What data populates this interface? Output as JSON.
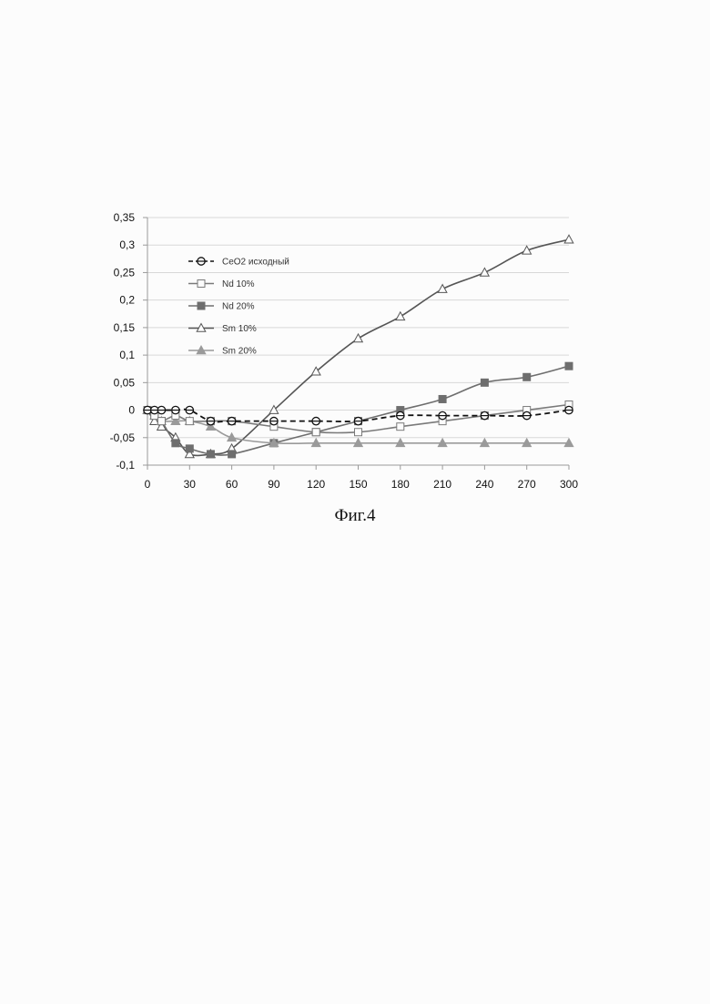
{
  "caption": "Фиг.4",
  "chart_data": {
    "type": "line",
    "title": "",
    "xlabel": "",
    "ylabel": "",
    "x": [
      0,
      5,
      10,
      20,
      30,
      45,
      60,
      90,
      120,
      150,
      180,
      210,
      240,
      270,
      300
    ],
    "x_ticks": [
      0,
      30,
      60,
      90,
      120,
      150,
      180,
      210,
      240,
      270,
      300
    ],
    "x_tick_labels": [
      "0",
      "30",
      "60",
      "90",
      "120",
      "150",
      "180",
      "210",
      "240",
      "270",
      "300"
    ],
    "xlim": [
      0,
      300
    ],
    "ylim": [
      -0.1,
      0.35
    ],
    "y_ticks": [
      -0.1,
      -0.05,
      0,
      0.05,
      0.1,
      0.15,
      0.2,
      0.25,
      0.3,
      0.35
    ],
    "y_tick_labels": [
      "-0,1",
      "-0,05",
      "0",
      "0,05",
      "0,1",
      "0,15",
      "0,2",
      "0,25",
      "0,3",
      "0,35"
    ],
    "grid": "horizontal",
    "legend_position": "top-left",
    "series": [
      {
        "name": "CeO2 исходный",
        "color": "#111111",
        "dash": true,
        "marker": "circle-open",
        "points": [
          [
            0,
            0
          ],
          [
            5,
            0
          ],
          [
            10,
            0
          ],
          [
            20,
            0
          ],
          [
            30,
            0
          ],
          [
            45,
            -0.02
          ],
          [
            60,
            -0.02
          ],
          [
            90,
            -0.02
          ],
          [
            120,
            -0.02
          ],
          [
            150,
            -0.02
          ],
          [
            180,
            -0.01
          ],
          [
            210,
            -0.01
          ],
          [
            240,
            -0.01
          ],
          [
            270,
            -0.01
          ],
          [
            300,
            0
          ]
        ]
      },
      {
        "name": "Nd 10%",
        "color": "#7a7a7a",
        "dash": false,
        "marker": "square-open",
        "points": [
          [
            0,
            0
          ],
          [
            5,
            -0.01
          ],
          [
            10,
            -0.02
          ],
          [
            20,
            -0.01
          ],
          [
            30,
            -0.02
          ],
          [
            45,
            -0.02
          ],
          [
            60,
            -0.02
          ],
          [
            90,
            -0.03
          ],
          [
            120,
            -0.04
          ],
          [
            150,
            -0.04
          ],
          [
            180,
            -0.03
          ],
          [
            210,
            -0.02
          ],
          [
            240,
            -0.01
          ],
          [
            270,
            0
          ],
          [
            300,
            0.01
          ]
        ]
      },
      {
        "name": "Nd 20%",
        "color": "#6e6e6e",
        "dash": false,
        "marker": "square-filled",
        "points": [
          [
            0,
            0
          ],
          [
            5,
            -0.01
          ],
          [
            10,
            -0.02
          ],
          [
            20,
            -0.06
          ],
          [
            30,
            -0.07
          ],
          [
            45,
            -0.08
          ],
          [
            60,
            -0.08
          ],
          [
            90,
            -0.06
          ],
          [
            120,
            -0.04
          ],
          [
            150,
            -0.02
          ],
          [
            180,
            0
          ],
          [
            210,
            0.02
          ],
          [
            240,
            0.05
          ],
          [
            270,
            0.06
          ],
          [
            300,
            0.08
          ]
        ]
      },
      {
        "name": "Sm 10%",
        "color": "#555555",
        "dash": false,
        "marker": "triangle-open",
        "points": [
          [
            0,
            0
          ],
          [
            5,
            -0.02
          ],
          [
            10,
            -0.03
          ],
          [
            20,
            -0.05
          ],
          [
            30,
            -0.08
          ],
          [
            45,
            -0.08
          ],
          [
            60,
            -0.07
          ],
          [
            90,
            0
          ],
          [
            120,
            0.07
          ],
          [
            150,
            0.13
          ],
          [
            180,
            0.17
          ],
          [
            210,
            0.22
          ],
          [
            240,
            0.25
          ],
          [
            270,
            0.29
          ],
          [
            300,
            0.31
          ]
        ]
      },
      {
        "name": "Sm 20%",
        "color": "#9a9a9a",
        "dash": false,
        "marker": "triangle-filled",
        "points": [
          [
            0,
            0
          ],
          [
            5,
            -0.01
          ],
          [
            10,
            -0.02
          ],
          [
            20,
            -0.02
          ],
          [
            30,
            -0.02
          ],
          [
            45,
            -0.03
          ],
          [
            60,
            -0.05
          ],
          [
            90,
            -0.06
          ],
          [
            120,
            -0.06
          ],
          [
            150,
            -0.06
          ],
          [
            180,
            -0.06
          ],
          [
            210,
            -0.06
          ],
          [
            240,
            -0.06
          ],
          [
            270,
            -0.06
          ],
          [
            300,
            -0.06
          ]
        ]
      }
    ]
  }
}
